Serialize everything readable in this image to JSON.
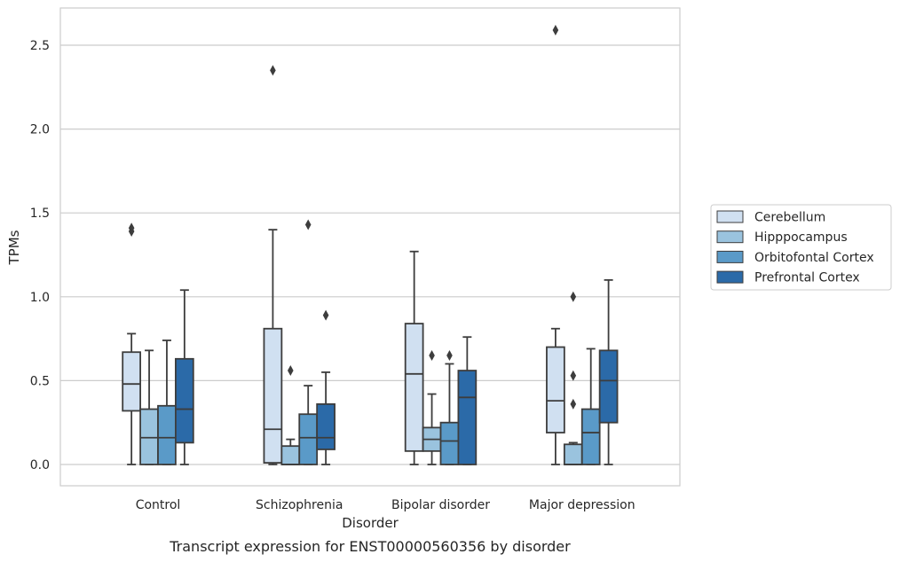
{
  "chart_data": {
    "type": "box",
    "caption": "Transcript expression for ENST00000560356 by disorder",
    "xlabel": "Disorder",
    "ylabel": "TPMs",
    "ylim": [
      -0.12,
      2.72
    ],
    "yticks": [
      0.0,
      0.5,
      1.0,
      1.5,
      2.0,
      2.5
    ],
    "ytick_labels": [
      "0.0",
      "0.5",
      "1.0",
      "1.5",
      "2.0",
      "2.5"
    ],
    "grid": true,
    "legend_position": "right",
    "categories": [
      "Control",
      "Schizophrenia",
      "Bipolar disorder",
      "Major depression"
    ],
    "series": [
      {
        "name": "Cerebellum",
        "color": "#d0e0f1",
        "boxes": [
          {
            "whislo": 0.0,
            "q1": 0.32,
            "med": 0.48,
            "q3": 0.67,
            "whishi": 0.78,
            "fliers": [
              1.39,
              1.41
            ]
          },
          {
            "whislo": 0.0,
            "q1": 0.01,
            "med": 0.21,
            "q3": 0.81,
            "whishi": 1.4,
            "fliers": [
              2.35
            ]
          },
          {
            "whislo": 0.0,
            "q1": 0.08,
            "med": 0.54,
            "q3": 0.84,
            "whishi": 1.27,
            "fliers": []
          },
          {
            "whislo": 0.0,
            "q1": 0.19,
            "med": 0.38,
            "q3": 0.7,
            "whishi": 0.81,
            "fliers": [
              2.59
            ]
          }
        ]
      },
      {
        "name": "Hipppocampus",
        "color": "#9ac3de",
        "boxes": [
          {
            "whislo": 0.0,
            "q1": 0.0,
            "med": 0.16,
            "q3": 0.33,
            "whishi": 0.68,
            "fliers": []
          },
          {
            "whislo": 0.0,
            "q1": 0.0,
            "med": 0.0,
            "q3": 0.11,
            "whishi": 0.15,
            "fliers": [
              0.56
            ]
          },
          {
            "whislo": 0.0,
            "q1": 0.08,
            "med": 0.15,
            "q3": 0.22,
            "whishi": 0.42,
            "fliers": [
              0.65
            ]
          },
          {
            "whislo": 0.0,
            "q1": 0.0,
            "med": 0.0,
            "q3": 0.12,
            "whishi": 0.13,
            "fliers": [
              0.36,
              0.53,
              1.0
            ]
          }
        ]
      },
      {
        "name": "Orbitofontal Cortex",
        "color": "#5a9ac8",
        "boxes": [
          {
            "whislo": 0.0,
            "q1": 0.0,
            "med": 0.16,
            "q3": 0.35,
            "whishi": 0.74,
            "fliers": []
          },
          {
            "whislo": 0.0,
            "q1": 0.0,
            "med": 0.16,
            "q3": 0.3,
            "whishi": 0.47,
            "fliers": [
              1.43
            ]
          },
          {
            "whislo": 0.0,
            "q1": 0.0,
            "med": 0.14,
            "q3": 0.25,
            "whishi": 0.6,
            "fliers": [
              0.65
            ]
          },
          {
            "whislo": 0.0,
            "q1": 0.0,
            "med": 0.19,
            "q3": 0.33,
            "whishi": 0.69,
            "fliers": []
          }
        ]
      },
      {
        "name": "Prefrontal Cortex",
        "color": "#2b6aa8",
        "boxes": [
          {
            "whislo": 0.0,
            "q1": 0.13,
            "med": 0.33,
            "q3": 0.63,
            "whishi": 1.04,
            "fliers": []
          },
          {
            "whislo": 0.0,
            "q1": 0.09,
            "med": 0.16,
            "q3": 0.36,
            "whishi": 0.55,
            "fliers": [
              0.89
            ]
          },
          {
            "whislo": 0.0,
            "q1": 0.0,
            "med": 0.4,
            "q3": 0.56,
            "whishi": 0.76,
            "fliers": []
          },
          {
            "whislo": 0.0,
            "q1": 0.25,
            "med": 0.5,
            "q3": 0.68,
            "whishi": 1.1,
            "fliers": []
          }
        ]
      }
    ]
  }
}
